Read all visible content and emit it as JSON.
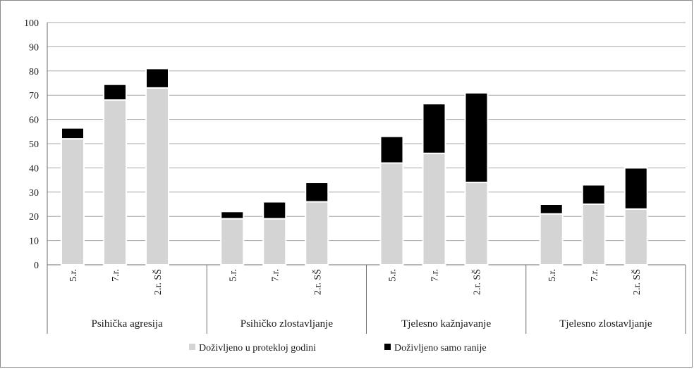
{
  "chart_data": {
    "type": "bar",
    "stacked": true,
    "title": "",
    "xlabel": "",
    "ylabel": "",
    "ylim": [
      0,
      100
    ],
    "yticks": [
      0,
      10,
      20,
      30,
      40,
      50,
      60,
      70,
      80,
      90,
      100
    ],
    "grid": true,
    "legend_position": "bottom",
    "groups": [
      {
        "name": "Psihička agresija",
        "categories": [
          "5.r.",
          "7.r.",
          "2.r. SŠ"
        ]
      },
      {
        "name": "Psihičko zlostavljanje",
        "categories": [
          "5.r.",
          "7.r.",
          "2.r. SŠ"
        ]
      },
      {
        "name": "Tjelesno kažnjavanje",
        "categories": [
          "5.r.",
          "7.r.",
          "2.r. SŠ"
        ]
      },
      {
        "name": "Tjelesno zlostavljanje",
        "categories": [
          "5.r.",
          "7.r.",
          "2.r. SŠ"
        ]
      }
    ],
    "series": [
      {
        "name": "Doživljeno u protekloj godini",
        "color": "#d4d4d4",
        "values": [
          [
            52,
            68,
            73
          ],
          [
            19,
            19,
            26
          ],
          [
            42,
            46,
            34
          ],
          [
            21,
            25,
            23
          ]
        ]
      },
      {
        "name": "Doživljeno samo ranije",
        "color": "#000000",
        "values": [
          [
            4.5,
            6.5,
            8
          ],
          [
            3,
            7,
            8
          ],
          [
            11,
            20.5,
            37
          ],
          [
            4,
            8,
            17
          ]
        ]
      }
    ]
  }
}
